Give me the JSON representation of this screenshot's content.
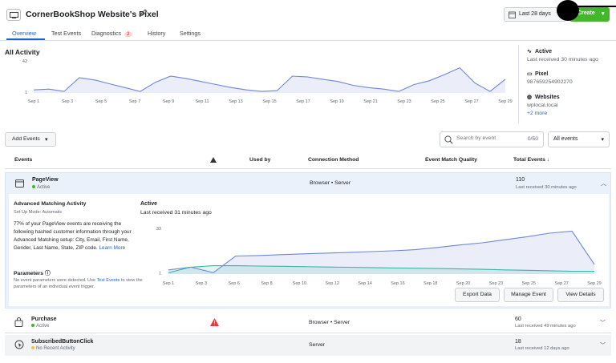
{
  "header": {
    "title": "CornerBookShop Website's Pixel",
    "date_range": "Last 28 days",
    "create_label": "Create",
    "tabs": [
      {
        "label": "Overview"
      },
      {
        "label": "Test Events"
      },
      {
        "label": "Diagnostics",
        "badge": "2"
      },
      {
        "label": "History"
      },
      {
        "label": "Settings"
      }
    ]
  },
  "overview": {
    "title": "All Activity",
    "chart_data": {
      "type": "area",
      "ylim": [
        0,
        42
      ],
      "yticks": [
        "42",
        "1"
      ],
      "x_labels": [
        "Sep 1",
        "Sep 3",
        "Sep 5",
        "Sep 7",
        "Sep 9",
        "Sep 11",
        "Sep 13",
        "Sep 15",
        "Sep 17",
        "Sep 19",
        "Sep 21",
        "Sep 23",
        "Sep 25",
        "Sep 27",
        "Sep 29"
      ],
      "values": [
        4,
        5,
        2,
        20,
        17,
        12,
        7,
        2,
        14,
        22,
        19,
        15,
        11,
        7,
        4,
        2,
        3,
        22,
        21,
        18,
        15,
        10,
        7,
        5,
        2,
        11,
        16,
        24,
        33,
        13,
        2,
        18
      ]
    },
    "side": {
      "active": "Active",
      "last_received": "Last received 30 minutes ago",
      "pixel_label": "Pixel",
      "pixel_id": "987659254902270",
      "websites_label": "Websites",
      "website": "wplocal.local",
      "more": "+2 more"
    }
  },
  "toolbar": {
    "add_events": "Add Events",
    "search_placeholder": "Search by event",
    "search_count": "0/50",
    "filter": "All events"
  },
  "table": {
    "headers": {
      "events": "Events",
      "used_by": "Used by",
      "connection": "Connection Method",
      "quality": "Event Match Quality",
      "total": "Total Events ↓"
    },
    "rows": [
      {
        "name": "PageView",
        "status": "Active",
        "connection": "Browser • Server",
        "total": "110",
        "received": "Last received 30 minutes ago",
        "status_color": "#42b72a"
      },
      {
        "name": "Purchase",
        "status": "Active",
        "connection": "Browser • Server",
        "total": "60",
        "received": "Last received 49 minutes ago",
        "status_color": "#42b72a"
      },
      {
        "name": "SubscribedButtonClick",
        "status": "No Recent Activity",
        "connection": "Server",
        "total": "18",
        "received": "Last received 12 days ago",
        "status_color": "#f5c33b"
      }
    ]
  },
  "detail": {
    "am_title": "Advanced Matching Activity",
    "am_mode": "Set Up Mode: Automatic",
    "am_body": "77% of your PageView events are receiving the following hashed customer information through your Advanced Matching setup: City, Email, First Name, Gender, Last Name, State, ZIP code.",
    "learn_more": "Learn More",
    "params_title": "Parameters",
    "params_body_1": "No event parameters were detected. Use",
    "test_events": "Test Events",
    "params_body_2": "to view the parameters of an individual event trigger.",
    "active": "Active",
    "last_received": "Last received 31 minutes ago",
    "chart_data": {
      "type": "line",
      "ylim": [
        0,
        33
      ],
      "yticks": [
        "33",
        "1"
      ],
      "x_labels": [
        "Sep 1",
        "Sep 3",
        "Sep 6",
        "Sep 8",
        "Sep 10",
        "Sep 12",
        "Sep 14",
        "Sep 16",
        "Sep 18",
        "Sep 20",
        "Sep 23",
        "Sep 25",
        "Sep 27",
        "Sep 29"
      ],
      "series": [
        {
          "color": "#6f86d6",
          "values": [
            3,
            5,
            1,
            13,
            13.4,
            14,
            14.6,
            15.1,
            15.6,
            16.2,
            16.8,
            17.6,
            19.2,
            21,
            22.6,
            24.8,
            27,
            29.5,
            31,
            7
          ]
        },
        {
          "color": "#3bb3a6",
          "values": [
            1,
            5,
            6,
            6,
            5.8,
            5.6,
            5.4,
            5.1,
            4.9,
            4.7,
            4.4,
            4.2,
            4,
            3.7,
            3.4,
            3,
            2.7,
            2.4,
            2,
            2
          ]
        }
      ]
    },
    "buttons": {
      "export": "Export Data",
      "manage": "Manage Event",
      "view": "View Details"
    }
  }
}
